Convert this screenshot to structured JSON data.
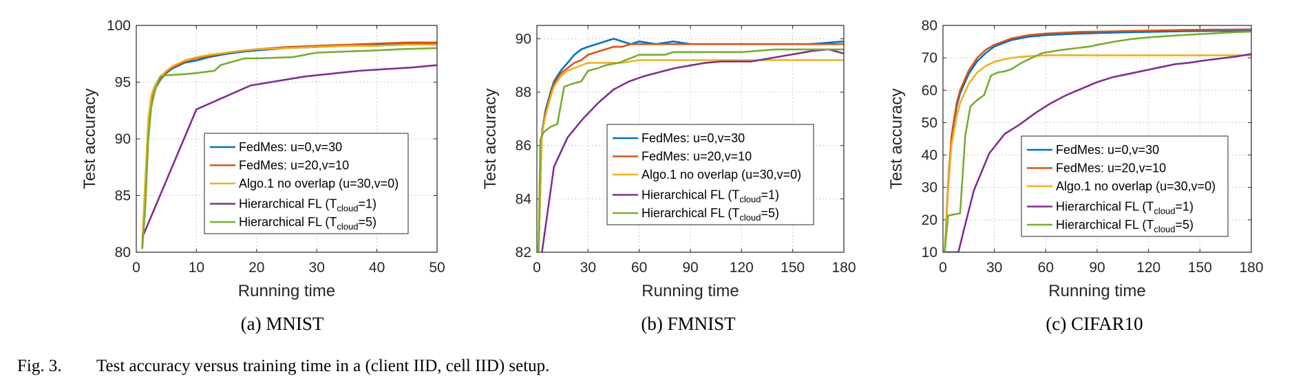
{
  "caption": {
    "label": "Fig. 3.",
    "text": "Test accuracy versus training time in a (client IID, cell IID) setup."
  },
  "colors": {
    "fedmes_u0": "#0072BD",
    "fedmes_u20": "#D95319",
    "algo1": "#EDB120",
    "hier_t1": "#7E2F8E",
    "hier_t5": "#77AC30"
  },
  "chart_data": [
    {
      "type": "line",
      "panel": "a",
      "subcaption": "(a)  MNIST",
      "xlabel": "Running time",
      "ylabel": "Test accuracy",
      "xlim": [
        0,
        50
      ],
      "ylim": [
        80,
        100
      ],
      "xticks": [
        "0",
        "10",
        "20",
        "30",
        "40",
        "50"
      ],
      "yticks": [
        "80",
        "85",
        "90",
        "95",
        "100"
      ],
      "grid": true,
      "legend_position": "center-right",
      "series": [
        {
          "name": "FedMes: u=0,v=30",
          "color_key": "fedmes_u0",
          "x": [
            1,
            1.5,
            2,
            2.5,
            3,
            4,
            5,
            6,
            8,
            10,
            12,
            15,
            18,
            20,
            25,
            30,
            35,
            40,
            45,
            50
          ],
          "y": [
            80.5,
            86,
            91.5,
            93.5,
            94.3,
            95.2,
            95.8,
            96.2,
            96.7,
            96.9,
            97.2,
            97.5,
            97.7,
            97.8,
            98.0,
            98.1,
            98.2,
            98.3,
            98.4,
            98.4
          ]
        },
        {
          "name": "FedMes: u=20,v=10",
          "color_key": "fedmes_u20",
          "x": [
            1,
            1.5,
            2,
            2.5,
            3,
            4,
            5,
            6,
            8,
            10,
            12,
            15,
            18,
            20,
            25,
            30,
            35,
            40,
            45,
            50
          ],
          "y": [
            80.3,
            85.5,
            91.3,
            93.3,
            94.3,
            95.3,
            95.9,
            96.3,
            96.8,
            97.1,
            97.3,
            97.6,
            97.8,
            97.9,
            98.1,
            98.2,
            98.3,
            98.4,
            98.5,
            98.5
          ]
        },
        {
          "name": "Algo.1 no overlap (u=30,v=0)",
          "color_key": "algo1",
          "x": [
            1,
            1.5,
            2,
            2.5,
            3,
            4,
            5,
            6,
            8,
            10,
            12,
            15,
            18,
            20,
            25,
            30,
            35,
            40,
            45,
            50
          ],
          "y": [
            80.8,
            86.5,
            91.8,
            93.8,
            94.6,
            95.5,
            96.0,
            96.4,
            96.9,
            97.2,
            97.4,
            97.6,
            97.8,
            97.9,
            98.0,
            98.1,
            98.2,
            98.2,
            98.3,
            98.3
          ]
        },
        {
          "name": "Hierarchical FL (T_cloud=1)",
          "color_key": "hier_t1",
          "x": [
            1,
            10,
            19,
            28,
            37,
            46,
            50
          ],
          "y": [
            81.3,
            92.6,
            94.7,
            95.5,
            96.0,
            96.3,
            96.5
          ]
        },
        {
          "name": "Hierarchical FL (T_cloud=5)",
          "color_key": "hier_t5",
          "x": [
            1,
            1.5,
            2,
            2.5,
            3,
            3.5,
            4,
            5,
            8,
            10,
            13,
            14,
            16,
            18,
            20,
            26,
            28,
            30,
            40,
            44,
            50
          ],
          "y": [
            80.3,
            84,
            90,
            92.8,
            94.0,
            94.9,
            95.5,
            95.6,
            95.7,
            95.8,
            96.0,
            96.5,
            96.8,
            97.1,
            97.1,
            97.2,
            97.4,
            97.6,
            97.8,
            97.9,
            98.0
          ]
        }
      ]
    },
    {
      "type": "line",
      "panel": "b",
      "subcaption": "(b)  FMNIST",
      "xlabel": "Running time",
      "ylabel": "Test accuracy",
      "xlim": [
        0,
        180
      ],
      "ylim": [
        82,
        90.5
      ],
      "xticks": [
        "0",
        "30",
        "60",
        "90",
        "120",
        "150",
        "180"
      ],
      "yticks": [
        "82",
        "84",
        "86",
        "88",
        "90"
      ],
      "grid": true,
      "legend_position": "center-right",
      "series": [
        {
          "name": "FedMes: u=0,v=30",
          "color_key": "fedmes_u0",
          "x": [
            1,
            3,
            5,
            8,
            10,
            14,
            18,
            22,
            26,
            30,
            35,
            40,
            45,
            50,
            55,
            60,
            70,
            80,
            90,
            100,
            120,
            140,
            160,
            180
          ],
          "y": [
            82.1,
            86.5,
            87.3,
            88.0,
            88.4,
            88.8,
            89.1,
            89.4,
            89.6,
            89.7,
            89.8,
            89.9,
            90.0,
            89.9,
            89.8,
            89.9,
            89.8,
            89.9,
            89.8,
            89.8,
            89.8,
            89.8,
            89.8,
            89.9
          ]
        },
        {
          "name": "FedMes: u=20,v=10",
          "color_key": "fedmes_u20",
          "x": [
            1,
            3,
            5,
            8,
            10,
            14,
            18,
            22,
            26,
            30,
            35,
            40,
            45,
            50,
            55,
            60,
            70,
            80,
            90,
            100,
            120,
            140,
            160,
            180
          ],
          "y": [
            82.1,
            86.4,
            87.2,
            87.9,
            88.3,
            88.7,
            88.9,
            89.1,
            89.2,
            89.4,
            89.5,
            89.6,
            89.7,
            89.7,
            89.8,
            89.8,
            89.8,
            89.8,
            89.8,
            89.8,
            89.8,
            89.8,
            89.8,
            89.8
          ]
        },
        {
          "name": "Algo.1 no overlap (u=30,v=0)",
          "color_key": "algo1",
          "x": [
            1,
            3,
            5,
            8,
            10,
            14,
            18,
            22,
            26,
            30,
            40,
            50,
            60,
            80,
            100,
            120,
            140,
            160,
            180
          ],
          "y": [
            82.1,
            86.4,
            87.1,
            87.8,
            88.2,
            88.6,
            88.8,
            88.9,
            89.0,
            89.1,
            89.1,
            89.1,
            89.2,
            89.2,
            89.2,
            89.2,
            89.2,
            89.2,
            89.2
          ]
        },
        {
          "name": "Hierarchical FL (T_cloud=1)",
          "color_key": "hier_t1",
          "x": [
            3,
            10,
            18,
            27,
            36,
            45,
            54,
            63,
            72,
            81,
            90,
            99,
            108,
            117,
            126,
            135,
            144,
            153,
            162,
            171,
            180
          ],
          "y": [
            82.0,
            85.2,
            86.3,
            87.0,
            87.6,
            88.1,
            88.4,
            88.6,
            88.75,
            88.9,
            89.0,
            89.1,
            89.15,
            89.15,
            89.15,
            89.25,
            89.35,
            89.45,
            89.55,
            89.6,
            89.45
          ]
        },
        {
          "name": "Hierarchical FL (T_cloud=5)",
          "color_key": "hier_t5",
          "x": [
            1,
            2,
            4,
            8,
            12,
            16,
            20,
            26,
            30,
            36,
            40,
            48,
            52,
            56,
            60,
            75,
            80,
            90,
            100,
            120,
            140,
            160,
            180
          ],
          "y": [
            82.0,
            86.2,
            86.5,
            86.7,
            86.8,
            88.2,
            88.3,
            88.4,
            88.8,
            88.9,
            89.0,
            89.1,
            89.2,
            89.3,
            89.4,
            89.4,
            89.5,
            89.5,
            89.5,
            89.5,
            89.6,
            89.6,
            89.6
          ]
        }
      ]
    },
    {
      "type": "line",
      "panel": "c",
      "subcaption": "(c)  CIFAR10",
      "xlabel": "Running time",
      "ylabel": "Test accuracy",
      "xlim": [
        0,
        180
      ],
      "ylim": [
        10,
        80
      ],
      "xticks": [
        "0",
        "30",
        "60",
        "90",
        "120",
        "150",
        "180"
      ],
      "yticks": [
        "10",
        "20",
        "30",
        "40",
        "50",
        "60",
        "70",
        "80"
      ],
      "grid": true,
      "legend_position": "center-right",
      "series": [
        {
          "name": "FedMes: u=0,v=30",
          "color_key": "fedmes_u0",
          "x": [
            1,
            3,
            5,
            8,
            10,
            15,
            20,
            25,
            30,
            40,
            50,
            60,
            80,
            100,
            120,
            140,
            160,
            180
          ],
          "y": [
            10,
            30,
            45,
            55,
            59,
            65,
            69,
            71.5,
            73.5,
            75.5,
            76.5,
            77,
            77.5,
            77.8,
            78,
            78.2,
            78.3,
            78.4
          ]
        },
        {
          "name": "FedMes: u=20,v=10",
          "color_key": "fedmes_u20",
          "x": [
            1,
            3,
            5,
            8,
            10,
            15,
            20,
            25,
            30,
            40,
            50,
            60,
            80,
            100,
            120,
            140,
            160,
            180
          ],
          "y": [
            10,
            31,
            46,
            56,
            60,
            66,
            70,
            72.5,
            74,
            76,
            77,
            77.5,
            78,
            78.2,
            78.4,
            78.6,
            78.7,
            78.8
          ]
        },
        {
          "name": "Algo.1 no overlap (u=30,v=0)",
          "color_key": "algo1",
          "x": [
            1,
            3,
            5,
            8,
            10,
            15,
            20,
            25,
            30,
            40,
            50,
            60,
            80,
            100,
            120,
            140,
            160,
            180
          ],
          "y": [
            10,
            29,
            43,
            52,
            56,
            62,
            65.5,
            67.5,
            68.8,
            70,
            70.5,
            70.8,
            70.8,
            70.8,
            70.8,
            70.8,
            70.8,
            70.8
          ]
        },
        {
          "name": "Hierarchical FL (T_cloud=1)",
          "color_key": "hier_t1",
          "x": [
            1,
            9,
            12,
            18,
            27,
            36,
            45,
            54,
            63,
            72,
            81,
            90,
            99,
            108,
            117,
            126,
            135,
            144,
            153,
            162,
            171,
            180
          ],
          "y": [
            10,
            10,
            16.5,
            29,
            40.5,
            46.5,
            49.5,
            53,
            56,
            58.5,
            60.5,
            62.5,
            64,
            65,
            66,
            67,
            68,
            68.5,
            69.2,
            69.8,
            70.4,
            71.2
          ]
        },
        {
          "name": "Hierarchical FL (T_cloud=5)",
          "color_key": "hier_t5",
          "x": [
            1,
            3,
            10,
            13,
            16,
            20,
            24,
            28,
            32,
            36,
            40,
            46,
            50,
            58,
            64,
            70,
            78,
            86,
            90,
            100,
            110,
            120,
            130,
            140,
            150,
            160,
            170,
            180
          ],
          "y": [
            10,
            21.3,
            22,
            46,
            55,
            57,
            58.5,
            64.5,
            65.5,
            65.8,
            66.5,
            68.5,
            69.5,
            71.5,
            72,
            72.5,
            73,
            73.5,
            74,
            75,
            75.8,
            76.3,
            76.7,
            77,
            77.3,
            77.6,
            77.9,
            78.1
          ]
        }
      ]
    }
  ],
  "legend_labels": [
    {
      "main": "FedMes: u=0,v=30",
      "sub": "",
      "tail": "",
      "color_key": "fedmes_u0"
    },
    {
      "main": "FedMes: u=20,v=10",
      "sub": "",
      "tail": "",
      "color_key": "fedmes_u20"
    },
    {
      "main": "Algo.1 no overlap (u=30,v=0)",
      "sub": "",
      "tail": "",
      "color_key": "algo1"
    },
    {
      "main": "Hierarchical FL (T",
      "sub": "cloud",
      "tail": "=1)",
      "color_key": "hier_t1"
    },
    {
      "main": "Hierarchical FL (T",
      "sub": "cloud",
      "tail": "=5)",
      "color_key": "hier_t5"
    }
  ]
}
